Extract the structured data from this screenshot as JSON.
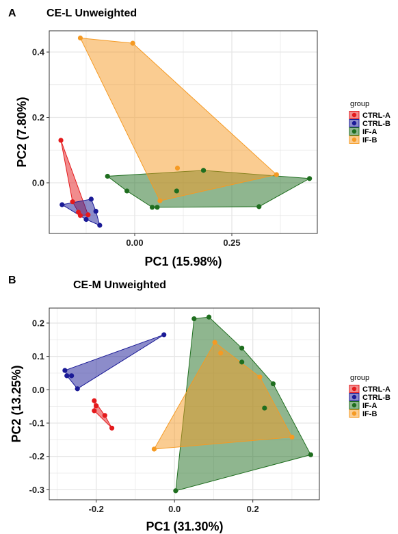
{
  "chart_data": [
    {
      "panel": "A",
      "type": "scatter",
      "title": "CE-L Unweighted",
      "xlabel": "PC1 (15.98%)",
      "ylabel": "PC2 (7.80%)",
      "xlim": [
        -0.22,
        0.47
      ],
      "ylim": [
        -0.155,
        0.465
      ],
      "xticks": [
        0,
        0.25
      ],
      "xtick_labels": [
        "0.00",
        "0.25"
      ],
      "yticks": [
        0,
        0.2,
        0.4
      ],
      "ytick_labels": [
        "0.0",
        "0.2",
        "0.4"
      ],
      "grid": true,
      "hulls": true,
      "legend": {
        "title": "group",
        "position": "right"
      },
      "series": [
        {
          "name": "CTRL-A",
          "color": "#e41a1c",
          "points": [
            [
              -0.19,
              0.13
            ],
            [
              -0.16,
              -0.058
            ],
            [
              -0.145,
              -0.09
            ],
            [
              -0.14,
              -0.1
            ],
            [
              -0.12,
              -0.098
            ]
          ]
        },
        {
          "name": "CTRL-B",
          "color": "#1a1a96",
          "points": [
            [
              -0.187,
              -0.067
            ],
            [
              -0.112,
              -0.05
            ],
            [
              -0.125,
              -0.112
            ],
            [
              -0.1,
              -0.087
            ],
            [
              -0.09,
              -0.13
            ]
          ]
        },
        {
          "name": "IF-A",
          "color": "#1f6e1f",
          "points": [
            [
              -0.07,
              0.02
            ],
            [
              -0.02,
              -0.025
            ],
            [
              0.045,
              -0.075
            ],
            [
              0.058,
              -0.075
            ],
            [
              0.108,
              -0.025
            ],
            [
              0.177,
              0.038
            ],
            [
              0.32,
              -0.073
            ],
            [
              0.45,
              0.013
            ]
          ]
        },
        {
          "name": "IF-B",
          "color": "#f59a23",
          "points": [
            [
              -0.14,
              0.443
            ],
            [
              -0.005,
              0.427
            ],
            [
              0.11,
              0.045
            ],
            [
              0.065,
              -0.055
            ],
            [
              0.365,
              0.025
            ]
          ]
        }
      ]
    },
    {
      "panel": "B",
      "type": "scatter",
      "title": "CE-M Unweighted",
      "xlabel": "PC1 (31.30%)",
      "ylabel": "PC2 (13.25%)",
      "xlim": [
        -0.32,
        0.37
      ],
      "ylim": [
        -0.33,
        0.245
      ],
      "xticks": [
        -0.2,
        0,
        0.2
      ],
      "xtick_labels": [
        "-0.2",
        "0.0",
        "0.2"
      ],
      "yticks": [
        0.2,
        0.1,
        0,
        -0.1,
        -0.2,
        -0.3
      ],
      "ytick_labels": [
        "0.2",
        "0.1",
        "0.0",
        "-0.1",
        "-0.2",
        "-0.3"
      ],
      "grid": true,
      "hulls": true,
      "legend": {
        "title": "group",
        "position": "right"
      },
      "series": [
        {
          "name": "CTRL-A",
          "color": "#e41a1c",
          "points": [
            [
              -0.205,
              -0.033
            ],
            [
              -0.2,
              -0.048
            ],
            [
              -0.205,
              -0.063
            ],
            [
              -0.178,
              -0.077
            ],
            [
              -0.16,
              -0.115
            ]
          ]
        },
        {
          "name": "CTRL-B",
          "color": "#1a1a96",
          "points": [
            [
              -0.28,
              0.058
            ],
            [
              -0.275,
              0.042
            ],
            [
              -0.263,
              0.042
            ],
            [
              -0.248,
              0.003
            ],
            [
              -0.027,
              0.165
            ]
          ]
        },
        {
          "name": "IF-A",
          "color": "#1f6e1f",
          "points": [
            [
              0.05,
              0.213
            ],
            [
              0.088,
              0.218
            ],
            [
              0.172,
              0.125
            ],
            [
              0.172,
              0.083
            ],
            [
              0.252,
              0.018
            ],
            [
              0.23,
              -0.055
            ],
            [
              0.348,
              -0.195
            ],
            [
              0.003,
              -0.303
            ]
          ]
        },
        {
          "name": "IF-B",
          "color": "#f59a23",
          "points": [
            [
              -0.052,
              -0.178
            ],
            [
              0.103,
              0.142
            ],
            [
              0.118,
              0.11
            ],
            [
              0.218,
              0.038
            ],
            [
              0.3,
              -0.142
            ]
          ]
        }
      ]
    }
  ]
}
